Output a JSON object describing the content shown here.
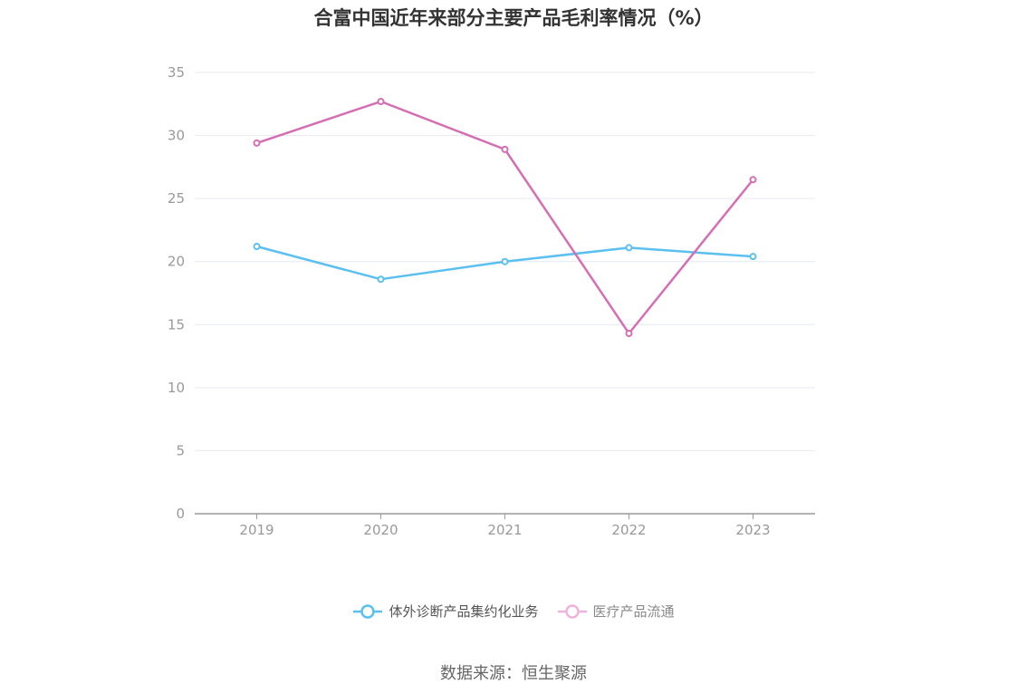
{
  "chart_data": {
    "type": "line",
    "title": "合富中国近年来部分主要产品毛利率情况（%）",
    "xlabel": "",
    "ylabel": "",
    "categories": [
      "2019",
      "2020",
      "2021",
      "2022",
      "2023"
    ],
    "yticks": [
      "0",
      "5",
      "10",
      "15",
      "20",
      "25",
      "30",
      "35"
    ],
    "ylim": [
      0,
      35
    ],
    "grid": true,
    "legend_position": "bottom",
    "series": [
      {
        "name": "体外诊断产品集约化业务",
        "color": "#5bc0f0",
        "values": [
          21.2,
          18.6,
          20.0,
          21.1,
          20.4
        ]
      },
      {
        "name": "医疗产品流通",
        "color": "#d46fb4",
        "values": [
          29.4,
          32.7,
          28.9,
          14.3,
          26.5
        ]
      }
    ]
  },
  "source": "数据来源：恒生聚源"
}
